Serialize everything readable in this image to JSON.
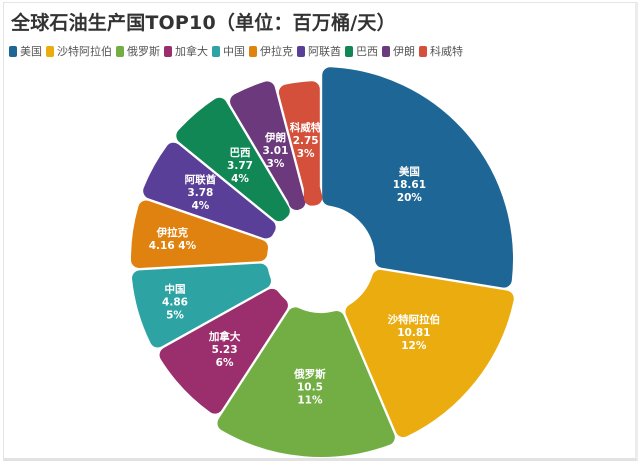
{
  "title": "全球石油生产国TOP10（单位：百万桶/天）",
  "legend": [
    {
      "name": "美国",
      "color": "#1e6695"
    },
    {
      "name": "沙特阿拉伯",
      "color": "#ebac0f"
    },
    {
      "name": "俄罗斯",
      "color": "#72ae44"
    },
    {
      "name": "加拿大",
      "color": "#9b2f6d"
    },
    {
      "name": "中国",
      "color": "#2ea3a3"
    },
    {
      "name": "伊拉克",
      "color": "#e0820f"
    },
    {
      "name": "阿联酋",
      "color": "#5a3f98"
    },
    {
      "name": "巴西",
      "color": "#128756"
    },
    {
      "name": "伊朗",
      "color": "#6c3a7c"
    },
    {
      "name": "科威特",
      "color": "#d5503a"
    }
  ],
  "chart_data": {
    "type": "pie",
    "subtype": "rose-donut",
    "title": "全球石油生产国TOP10（单位：百万桶/天）",
    "unit": "百万桶/天",
    "legend_position": "top-left",
    "categories": [
      "美国",
      "沙特阿拉伯",
      "俄罗斯",
      "加拿大",
      "中国",
      "伊拉克",
      "阿联酋",
      "巴西",
      "伊朗",
      "科威特"
    ],
    "values": [
      18.61,
      10.81,
      10.5,
      5.23,
      4.86,
      4.16,
      3.78,
      3.77,
      3.01,
      2.75
    ],
    "percent_labels": [
      "20%",
      "12%",
      "11%",
      "6%",
      "5%",
      "4%",
      "4%",
      "4%",
      "3%",
      "3%"
    ],
    "slices": [
      {
        "name": "美国",
        "value": "18.61",
        "percent": "20%",
        "color": "#1e6695"
      },
      {
        "name": "沙特阿拉伯",
        "value": "10.81",
        "percent": "12%",
        "color": "#ebac0f"
      },
      {
        "name": "俄罗斯",
        "value": "10.5",
        "percent": "11%",
        "color": "#72ae44"
      },
      {
        "name": "加拿大",
        "value": "5.23",
        "percent": "6%",
        "color": "#9b2f6d"
      },
      {
        "name": "中国",
        "value": "4.86",
        "percent": "5%",
        "color": "#2ea3a3"
      },
      {
        "name": "伊拉克",
        "value": "4.16",
        "percent": "4%",
        "color": "#e0820f"
      },
      {
        "name": "阿联酋",
        "value": "3.78",
        "percent": "4%",
        "color": "#5a3f98"
      },
      {
        "name": "巴西",
        "value": "3.77",
        "percent": "4%",
        "color": "#128756"
      },
      {
        "name": "伊朗",
        "value": "3.01",
        "percent": "3%",
        "color": "#6c3a7c"
      },
      {
        "name": "科威特",
        "value": "2.75",
        "percent": "3%",
        "color": "#d5503a"
      }
    ]
  }
}
